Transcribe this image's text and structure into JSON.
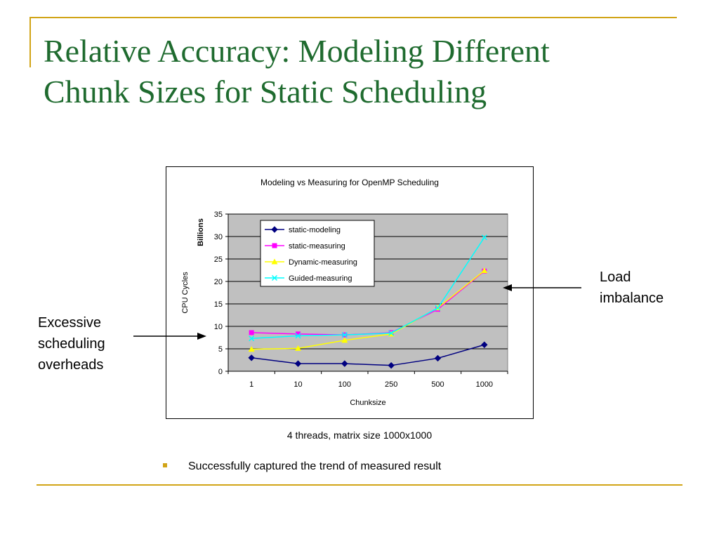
{
  "slide": {
    "title_line1": "Relative Accuracy: Modeling Different",
    "title_line2": "Chunk Sizes for Static Scheduling",
    "caption": "4 threads, matrix size 1000x1000",
    "bullet": "Successfully captured the trend of measured result",
    "annotation_left": [
      "Excessive",
      "scheduling",
      "overheads"
    ],
    "annotation_right": [
      "Load",
      "imbalance"
    ],
    "accent_color": "#D1A417",
    "title_color": "#1F6B2F"
  },
  "chart_data": {
    "type": "line",
    "title": "Modeling vs Measuring for OpenMP Scheduling",
    "xlabel": "Chunksize",
    "ylabel": "CPU Cycles",
    "yunit": "Billions",
    "categories": [
      "1",
      "10",
      "100",
      "250",
      "500",
      "1000"
    ],
    "ylim": [
      0,
      35
    ],
    "yticks": [
      0,
      5,
      10,
      15,
      20,
      25,
      30,
      35
    ],
    "grid": true,
    "legend_position": "top-left inside plot",
    "plot_background": "#C0C0C0",
    "series": [
      {
        "name": "static-modeling",
        "color": "#000080",
        "marker": "diamond",
        "values": [
          3.0,
          1.7,
          1.7,
          1.3,
          2.9,
          5.9
        ]
      },
      {
        "name": "static-measuring",
        "color": "#FF00FF",
        "marker": "square",
        "values": [
          8.6,
          8.3,
          8.1,
          8.6,
          13.8,
          22.3
        ]
      },
      {
        "name": "Dynamic-measuring",
        "color": "#FFFF00",
        "marker": "triangle",
        "values": [
          4.9,
          5.1,
          6.9,
          8.3,
          14.1,
          22.4
        ]
      },
      {
        "name": "Guided-measuring",
        "color": "#00FFFF",
        "marker": "x",
        "values": [
          7.3,
          7.9,
          8.1,
          8.5,
          14.1,
          29.8
        ]
      }
    ]
  }
}
